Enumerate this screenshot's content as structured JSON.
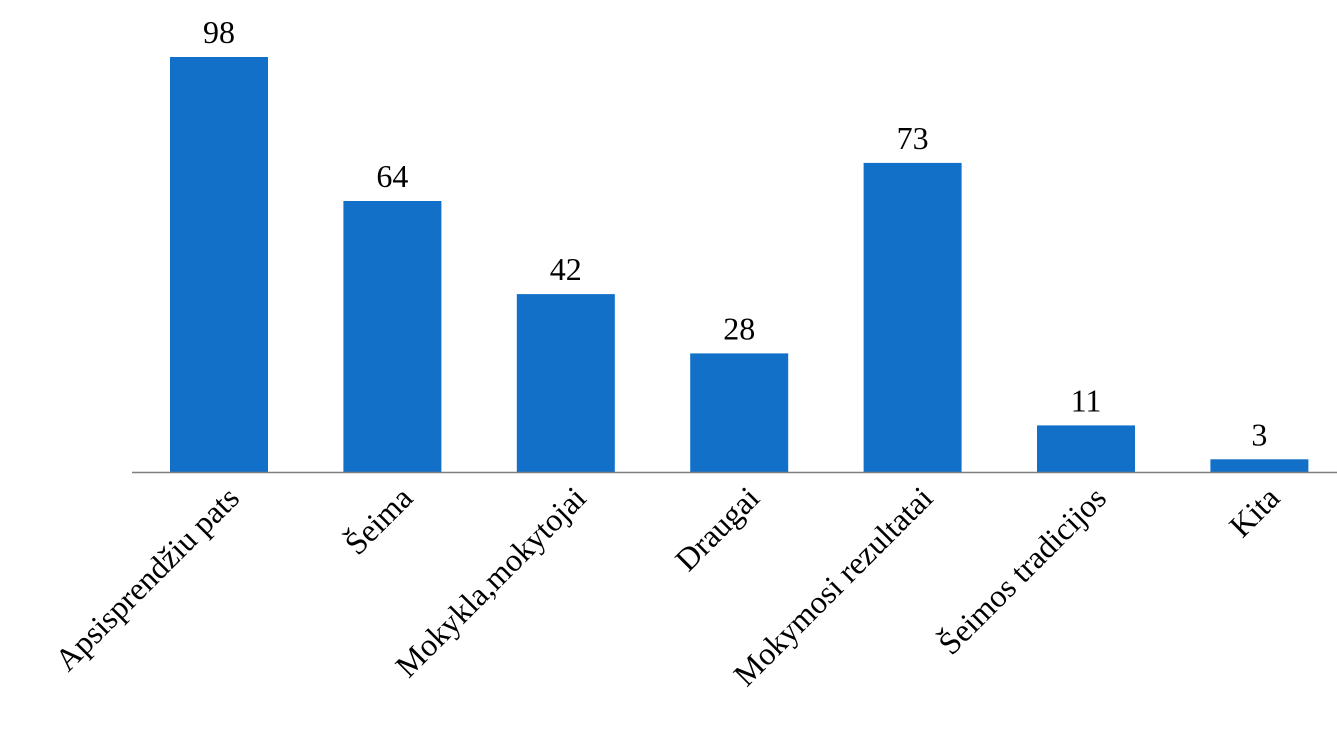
{
  "chart_data": {
    "type": "bar",
    "title": "",
    "xlabel": "",
    "ylabel": "",
    "categories": [
      "Apsisprendžiu pats",
      "Šeima",
      "Mokykla,mokytojai",
      "Draugai",
      "Mokymosi rezultatai",
      "Šeimos tradicijos",
      "Kita"
    ],
    "values": [
      98,
      64,
      42,
      28,
      73,
      11,
      3
    ],
    "ylim": [
      0,
      98
    ],
    "grid": false,
    "legend": "none",
    "bar_color": "#1270C8",
    "axis_color": "#7F7F7F",
    "data_labels": true
  }
}
